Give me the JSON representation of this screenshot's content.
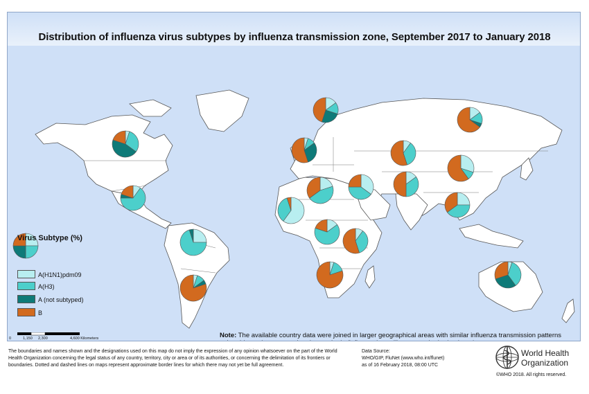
{
  "title": "Distribution of influenza virus subtypes by influenza transmission zone, September 2017 to January 2018",
  "legend": {
    "title": "Virus Subtype (%)",
    "items": [
      {
        "label": "A(H1N1)pdm09",
        "color": "#b8eef0"
      },
      {
        "label": "A(H3)",
        "color": "#4ccfcb"
      },
      {
        "label": "A (not subtyped)",
        "color": "#0e7a78"
      },
      {
        "label": "B",
        "color": "#d26a1f"
      }
    ]
  },
  "scale": {
    "labels": [
      "0",
      "1,150",
      "2,300",
      "4,600 Kilometers"
    ]
  },
  "note": {
    "label": "Note:",
    "text": "The available country data were joined in larger geographical areas with similar influenza transmission patterns to be able to give an overview (www.who.int/influenza/surveillance_monitoring/updates/ EN_GIP_Influenza_transmission_zones.pdf)."
  },
  "disclaimer": "The boundaries and names shown and the designations used on this map do not imply the expression of any opinion whatsoever on the part of the World Health Organization concerning the legal status of any country, territory, city or area or of its authorities, or concerning the delimitation of its frontiers or boundaries. Dotted and dashed lines on maps represent approximate border lines for which there may not yet be full agreement.",
  "source": {
    "line1": "Data Source:",
    "line2": "WHO/GIP, FluNet (www.who.int/flunet)",
    "line3": "as of 16 February 2018, 08:00 UTC"
  },
  "who": {
    "name_line1": "World Health",
    "name_line2": "Organization"
  },
  "copyright": "©WHO 2018. All rights reserved.",
  "zone_pies": [
    {
      "zone": "North America",
      "values": {
        "A(H1N1)pdm09": 5,
        "A(H3)": 30,
        "A (not subtyped)": 45,
        "B": 20
      }
    },
    {
      "zone": "Central America and Caribbean",
      "values": {
        "A(H1N1)pdm09": 10,
        "A(H3)": 65,
        "A (not subtyped)": 5,
        "B": 20
      }
    },
    {
      "zone": "Tropical South America",
      "values": {
        "A(H1N1)pdm09": 25,
        "A(H3)": 70,
        "A (not subtyped)": 5,
        "B": 0
      }
    },
    {
      "zone": "Temperate South America",
      "values": {
        "A(H1N1)pdm09": 5,
        "A(H3)": 10,
        "A (not subtyped)": 5,
        "B": 80
      }
    },
    {
      "zone": "Northern Europe",
      "values": {
        "A(H1N1)pdm09": 15,
        "A(H3)": 15,
        "A (not subtyped)": 25,
        "B": 45
      }
    },
    {
      "zone": "South West Europe",
      "values": {
        "A(H1N1)pdm09": 5,
        "A(H3)": 10,
        "A (not subtyped)": 30,
        "B": 55
      }
    },
    {
      "zone": "Eastern Europe",
      "values": {
        "A(H1N1)pdm09": 15,
        "A(H3)": 15,
        "A (not subtyped)": 5,
        "B": 65
      }
    },
    {
      "zone": "Central Asia",
      "values": {
        "A(H1N1)pdm09": 10,
        "A(H3)": 35,
        "A (not subtyped)": 0,
        "B": 55
      }
    },
    {
      "zone": "Eastern Asia",
      "values": {
        "A(H1N1)pdm09": 30,
        "A(H3)": 10,
        "A (not subtyped)": 0,
        "B": 60
      }
    },
    {
      "zone": "Northern Africa",
      "values": {
        "A(H1N1)pdm09": 20,
        "A(H3)": 45,
        "A (not subtyped)": 0,
        "B": 35
      }
    },
    {
      "zone": "Western Asia",
      "values": {
        "A(H1N1)pdm09": 35,
        "A(H3)": 40,
        "A (not subtyped)": 0,
        "B": 25
      }
    },
    {
      "zone": "Southern Asia",
      "values": {
        "A(H1N1)pdm09": 15,
        "A(H3)": 35,
        "A (not subtyped)": 0,
        "B": 50
      }
    },
    {
      "zone": "South East Asia",
      "values": {
        "A(H1N1)pdm09": 25,
        "A(H3)": 40,
        "A (not subtyped)": 0,
        "B": 35
      }
    },
    {
      "zone": "Western Africa",
      "values": {
        "A(H1N1)pdm09": 60,
        "A(H3)": 35,
        "A (not subtyped)": 0,
        "B": 5
      }
    },
    {
      "zone": "Middle Africa",
      "values": {
        "A(H1N1)pdm09": 15,
        "A(H3)": 65,
        "A (not subtyped)": 0,
        "B": 20
      }
    },
    {
      "zone": "Eastern Africa",
      "values": {
        "A(H1N1)pdm09": 10,
        "A(H3)": 35,
        "A (not subtyped)": 0,
        "B": 55
      }
    },
    {
      "zone": "Southern Africa",
      "values": {
        "A(H1N1)pdm09": 5,
        "A(H3)": 15,
        "A (not subtyped)": 0,
        "B": 80
      }
    },
    {
      "zone": "Oceania Melanesia Polynesia",
      "values": {
        "A(H1N1)pdm09": 5,
        "A(H3)": 35,
        "A (not subtyped)": 30,
        "B": 30
      }
    }
  ]
}
